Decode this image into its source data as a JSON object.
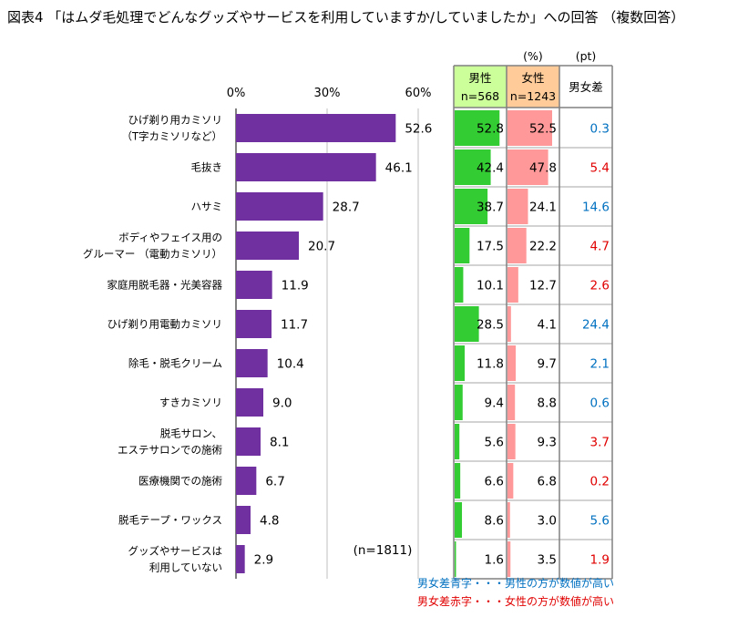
{
  "title": "図表4 「はムダ毛処理でどんなグッズやサービスを利用していますか/していましたか」への回答 （複数回答）",
  "chart_data": {
    "type": "bar",
    "orientation": "horizontal",
    "xlim": [
      0,
      60
    ],
    "ticks": [
      "0%",
      "30%",
      "60%"
    ],
    "tick_values": [
      0,
      30,
      60
    ],
    "grid": true,
    "bar_color": "#7030a0",
    "n_label": "(n=1811)",
    "categories": [
      [
        "ひげ剃り用カミソリ",
        "（T字カミソリなど）"
      ],
      [
        "毛抜き"
      ],
      [
        "ハサミ"
      ],
      [
        "ボディやフェイス用の",
        "グルーマー （電動カミソリ）"
      ],
      [
        "家庭用脱毛器・光美容器"
      ],
      [
        "ひげ剃り用電動カミソリ"
      ],
      [
        "除毛・脱毛クリーム"
      ],
      [
        "すきカミソリ"
      ],
      [
        "脱毛サロン、",
        "エステサロンでの施術"
      ],
      [
        "医療機関での施術"
      ],
      [
        "脱毛テープ・ワックス"
      ],
      [
        "グッズやサービスは",
        "利用していない"
      ]
    ],
    "values": [
      52.6,
      46.1,
      28.7,
      20.7,
      11.9,
      11.7,
      10.4,
      9.0,
      8.1,
      6.7,
      4.8,
      2.9
    ],
    "value_labels": [
      "52.6",
      "46.1",
      "28.7",
      "20.7",
      "11.9",
      "11.7",
      "10.4",
      "9.0",
      "8.1",
      "6.7",
      "4.8",
      "2.9"
    ]
  },
  "table": {
    "unit_pct": "(%)",
    "unit_pt": "(pt)",
    "male_header": "男性",
    "male_n": "n=568",
    "female_header": "女性",
    "female_n": "n=1243",
    "diff_header": "男女差",
    "male_color": "#33cc33",
    "female_color": "#ff9999",
    "male_header_bg": "#ccff99",
    "female_header_bg": "#ffcc99",
    "blue": "#0070c0",
    "red": "#e00000",
    "bar_max": 60,
    "rows": [
      {
        "male": 52.8,
        "female": 52.5,
        "male_label": "52.8",
        "female_label": "52.5",
        "diff": "0.3",
        "diff_color": "blue"
      },
      {
        "male": 42.4,
        "female": 47.8,
        "male_label": "42.4",
        "female_label": "47.8",
        "diff": "5.4",
        "diff_color": "red"
      },
      {
        "male": 38.7,
        "female": 24.1,
        "male_label": "38.7",
        "female_label": "24.1",
        "diff": "14.6",
        "diff_color": "blue"
      },
      {
        "male": 17.5,
        "female": 22.2,
        "male_label": "17.5",
        "female_label": "22.2",
        "diff": "4.7",
        "diff_color": "red"
      },
      {
        "male": 10.1,
        "female": 12.7,
        "male_label": "10.1",
        "female_label": "12.7",
        "diff": "2.6",
        "diff_color": "red"
      },
      {
        "male": 28.5,
        "female": 4.1,
        "male_label": "28.5",
        "female_label": "4.1",
        "diff": "24.4",
        "diff_color": "blue"
      },
      {
        "male": 11.8,
        "female": 9.7,
        "male_label": "11.8",
        "female_label": "9.7",
        "diff": "2.1",
        "diff_color": "blue"
      },
      {
        "male": 9.4,
        "female": 8.8,
        "male_label": "9.4",
        "female_label": "8.8",
        "diff": "0.6",
        "diff_color": "blue"
      },
      {
        "male": 5.6,
        "female": 9.3,
        "male_label": "5.6",
        "female_label": "9.3",
        "diff": "3.7",
        "diff_color": "red"
      },
      {
        "male": 6.6,
        "female": 6.8,
        "male_label": "6.6",
        "female_label": "6.8",
        "diff": "0.2",
        "diff_color": "red"
      },
      {
        "male": 8.6,
        "female": 3.0,
        "male_label": "8.6",
        "female_label": "3.0",
        "diff": "5.6",
        "diff_color": "blue"
      },
      {
        "male": 1.6,
        "female": 3.5,
        "male_label": "1.6",
        "female_label": "3.5",
        "diff": "1.9",
        "diff_color": "red"
      }
    ],
    "note_blue": "男女差青字・・・男性の方が数値が高い",
    "note_red": "男女差赤字・・・女性の方が数値が高い"
  }
}
